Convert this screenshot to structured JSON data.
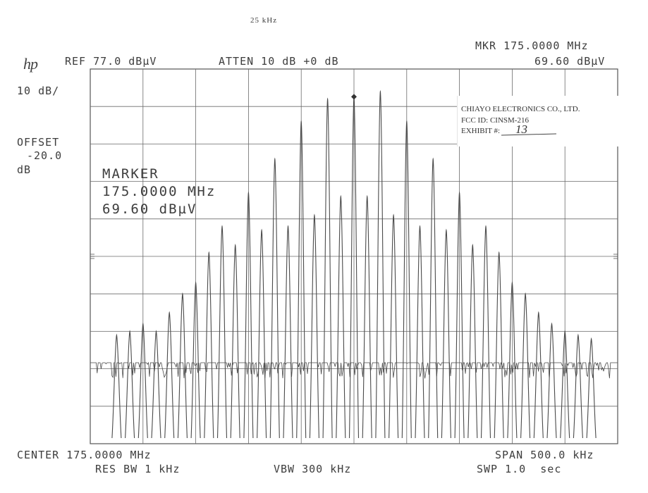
{
  "caption": "25 kHz",
  "logo": "hp",
  "header": {
    "ref": "REF 77.0 dBµV",
    "atten": "ATTEN 10 dB +0 dB",
    "mkr_freq": "MKR 175.0000 MHz",
    "mkr_level": "69.60 dBµV"
  },
  "left": {
    "scale": "10 dB/",
    "offset_label": "OFFSET",
    "offset_value": "-20.0",
    "offset_unit": "dB"
  },
  "marker_box": {
    "label": "MARKER",
    "freq": "175.0000 MHz",
    "level": "69.60 dBµV"
  },
  "stamp": {
    "company": "CHIAYO ELECTRONICS CO., LTD.",
    "fcc": "FCC ID: CINSM-216",
    "exhibit": "EXHIBIT #:",
    "exhibit_no": "13"
  },
  "footer": {
    "center": "CENTER 175.0000 MHz",
    "span": "SPAN 500.0 kHz",
    "res_bw": "RES BW 1 kHz",
    "vbw": "VBW 300 kHz",
    "swp": "SWP 1.0  sec"
  },
  "chart_data": {
    "type": "line",
    "x_unit": "kHz offset from 175.0000 MHz",
    "xlim": [
      -250,
      250
    ],
    "ylim": [
      -23,
      77
    ],
    "y_unit": "dBµV",
    "grid": true,
    "line_color": "#4a4a4a",
    "noise_floor": 0,
    "peak_spacing_khz": 12.5,
    "peaks": [
      {
        "x": -225,
        "y": 6
      },
      {
        "x": -212.5,
        "y": 7
      },
      {
        "x": -200,
        "y": 9
      },
      {
        "x": -187.5,
        "y": 7
      },
      {
        "x": -175,
        "y": 12
      },
      {
        "x": -162.5,
        "y": 17
      },
      {
        "x": -150,
        "y": 20
      },
      {
        "x": -137.5,
        "y": 28
      },
      {
        "x": -125,
        "y": 35
      },
      {
        "x": -112.5,
        "y": 30
      },
      {
        "x": -100,
        "y": 44
      },
      {
        "x": -87.5,
        "y": 34
      },
      {
        "x": -75,
        "y": 53
      },
      {
        "x": -62.5,
        "y": 35
      },
      {
        "x": -50,
        "y": 63
      },
      {
        "x": -37.5,
        "y": 38
      },
      {
        "x": -25,
        "y": 69
      },
      {
        "x": -12.5,
        "y": 43
      },
      {
        "x": 0,
        "y": 69.6
      },
      {
        "x": 12.5,
        "y": 43
      },
      {
        "x": 25,
        "y": 71
      },
      {
        "x": 37.5,
        "y": 38
      },
      {
        "x": 50,
        "y": 63
      },
      {
        "x": 62.5,
        "y": 35
      },
      {
        "x": 75,
        "y": 53
      },
      {
        "x": 87.5,
        "y": 34
      },
      {
        "x": 100,
        "y": 44
      },
      {
        "x": 112.5,
        "y": 30
      },
      {
        "x": 125,
        "y": 35
      },
      {
        "x": 137.5,
        "y": 28
      },
      {
        "x": 150,
        "y": 20
      },
      {
        "x": 162.5,
        "y": 17
      },
      {
        "x": 175,
        "y": 12
      },
      {
        "x": 187.5,
        "y": 9
      },
      {
        "x": 200,
        "y": 7
      },
      {
        "x": 212.5,
        "y": 6
      },
      {
        "x": 225,
        "y": 5
      }
    ],
    "marker": {
      "x": 0,
      "y": 69.6
    }
  }
}
